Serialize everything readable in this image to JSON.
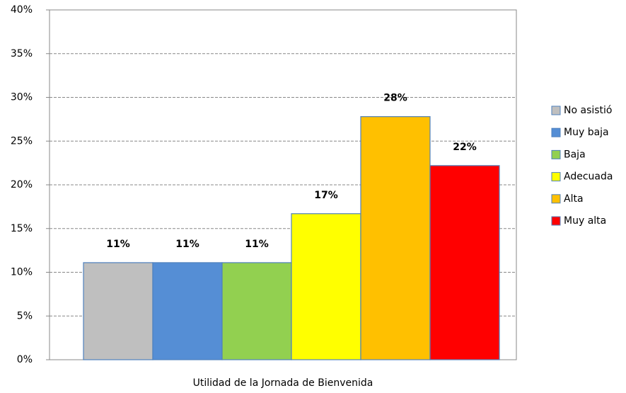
{
  "chart_data": {
    "type": "bar",
    "categories": [
      "Utilidad de la Jornada de Bienvenida"
    ],
    "series": [
      {
        "name": "No asistió",
        "color": "#bfbfbf",
        "values": [
          11.1
        ],
        "value_labels": [
          "11%"
        ]
      },
      {
        "name": "Muy baja",
        "color": "#558ed5",
        "values": [
          11.1
        ],
        "value_labels": [
          "11%"
        ]
      },
      {
        "name": "Baja",
        "color": "#92d050",
        "values": [
          11.1
        ],
        "value_labels": [
          "11%"
        ]
      },
      {
        "name": "Adecuada",
        "color": "#ffff00",
        "values": [
          16.7
        ],
        "value_labels": [
          "17%"
        ]
      },
      {
        "name": "Alta",
        "color": "#ffc000",
        "values": [
          27.8
        ],
        "value_labels": [
          "28%"
        ]
      },
      {
        "name": "Muy alta",
        "color": "#ff0000",
        "values": [
          22.2
        ],
        "value_labels": [
          "22%"
        ]
      }
    ],
    "ylim": [
      0,
      40
    ],
    "yticks": [
      {
        "value": 0,
        "label": "0%"
      },
      {
        "value": 5,
        "label": "5%"
      },
      {
        "value": 10,
        "label": "10%"
      },
      {
        "value": 15,
        "label": "15%"
      },
      {
        "value": 20,
        "label": "20%"
      },
      {
        "value": 25,
        "label": "25%"
      },
      {
        "value": 30,
        "label": "30%"
      },
      {
        "value": 35,
        "label": "35%"
      },
      {
        "value": 40,
        "label": "40%"
      }
    ],
    "grid": true,
    "legend": "right"
  }
}
